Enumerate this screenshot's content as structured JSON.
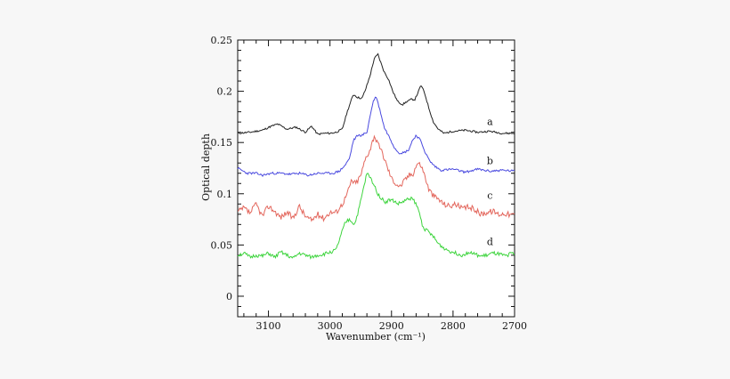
{
  "chart_data": {
    "type": "line",
    "title": "",
    "xlabel": "Wavenumber (cm⁻¹)",
    "ylabel": "Optical depth",
    "xlim": [
      3150,
      2700
    ],
    "ylim": [
      -0.02,
      0.25
    ],
    "x_reversed": true,
    "grid": false,
    "legend": "none",
    "x_ticks": [
      {
        "value": 3100,
        "label": "3100"
      },
      {
        "value": 3000,
        "label": "3000"
      },
      {
        "value": 2900,
        "label": "2900"
      },
      {
        "value": 2800,
        "label": "2800"
      },
      {
        "value": 2700,
        "label": "2700"
      }
    ],
    "y_ticks": [
      {
        "value": 0,
        "label": "0"
      },
      {
        "value": 0.05,
        "label": "0.05"
      },
      {
        "value": 0.1,
        "label": "0.1"
      },
      {
        "value": 0.15,
        "label": "0.15"
      },
      {
        "value": 0.2,
        "label": "0.2"
      },
      {
        "value": 0.25,
        "label": "0.25"
      }
    ],
    "series": [
      {
        "name": "a",
        "color": "#222222",
        "label_at": [
          2740,
          0.167
        ],
        "x": [
          3150,
          3130,
          3110,
          3095,
          3085,
          3070,
          3055,
          3040,
          3030,
          3020,
          3010,
          3000,
          2990,
          2980,
          2972,
          2962,
          2955,
          2948,
          2942,
          2935,
          2928,
          2922,
          2918,
          2912,
          2905,
          2898,
          2890,
          2882,
          2875,
          2868,
          2862,
          2856,
          2852,
          2846,
          2840,
          2832,
          2824,
          2815,
          2800,
          2780,
          2760,
          2740,
          2720,
          2700
        ],
        "y": [
          0.159,
          0.16,
          0.162,
          0.166,
          0.168,
          0.163,
          0.165,
          0.16,
          0.166,
          0.158,
          0.159,
          0.159,
          0.16,
          0.163,
          0.18,
          0.197,
          0.194,
          0.193,
          0.202,
          0.215,
          0.232,
          0.236,
          0.229,
          0.219,
          0.212,
          0.2,
          0.19,
          0.187,
          0.19,
          0.192,
          0.192,
          0.2,
          0.206,
          0.198,
          0.185,
          0.17,
          0.163,
          0.159,
          0.161,
          0.162,
          0.16,
          0.161,
          0.159,
          0.159
        ]
      },
      {
        "name": "b",
        "color": "#4a4adf",
        "label_at": [
          2740,
          0.129
        ],
        "x": [
          3150,
          3135,
          3120,
          3110,
          3095,
          3080,
          3065,
          3050,
          3035,
          3020,
          3005,
          2995,
          2985,
          2975,
          2968,
          2962,
          2955,
          2948,
          2940,
          2935,
          2930,
          2925,
          2918,
          2912,
          2905,
          2895,
          2888,
          2880,
          2872,
          2866,
          2860,
          2855,
          2850,
          2845,
          2838,
          2830,
          2820,
          2800,
          2780,
          2760,
          2740,
          2720,
          2700
        ],
        "y": [
          0.125,
          0.12,
          0.12,
          0.118,
          0.12,
          0.12,
          0.119,
          0.12,
          0.118,
          0.12,
          0.12,
          0.12,
          0.122,
          0.128,
          0.135,
          0.152,
          0.157,
          0.157,
          0.16,
          0.175,
          0.19,
          0.195,
          0.18,
          0.165,
          0.157,
          0.145,
          0.14,
          0.14,
          0.143,
          0.152,
          0.157,
          0.154,
          0.148,
          0.14,
          0.132,
          0.127,
          0.123,
          0.124,
          0.121,
          0.124,
          0.122,
          0.123,
          0.122
        ]
      },
      {
        "name": "c",
        "color": "#e3665c",
        "label_at": [
          2740,
          0.095
        ],
        "x": [
          3150,
          3140,
          3130,
          3120,
          3110,
          3100,
          3090,
          3080,
          3070,
          3060,
          3050,
          3040,
          3030,
          3020,
          3010,
          3000,
          2990,
          2980,
          2972,
          2965,
          2958,
          2950,
          2942,
          2935,
          2928,
          2922,
          2915,
          2908,
          2900,
          2893,
          2886,
          2880,
          2872,
          2865,
          2858,
          2852,
          2846,
          2840,
          2832,
          2824,
          2815,
          2805,
          2795,
          2785,
          2775,
          2765,
          2755,
          2745,
          2735,
          2725,
          2715,
          2705,
          2700
        ],
        "y": [
          0.082,
          0.086,
          0.081,
          0.09,
          0.078,
          0.088,
          0.083,
          0.077,
          0.082,
          0.076,
          0.088,
          0.078,
          0.074,
          0.08,
          0.076,
          0.082,
          0.082,
          0.09,
          0.1,
          0.113,
          0.11,
          0.118,
          0.135,
          0.143,
          0.157,
          0.148,
          0.14,
          0.128,
          0.115,
          0.11,
          0.107,
          0.112,
          0.118,
          0.12,
          0.13,
          0.128,
          0.118,
          0.105,
          0.098,
          0.095,
          0.09,
          0.088,
          0.09,
          0.085,
          0.087,
          0.085,
          0.08,
          0.082,
          0.083,
          0.08,
          0.081,
          0.079,
          0.08
        ]
      },
      {
        "name": "d",
        "color": "#3dd43d",
        "label_at": [
          2740,
          0.05
        ],
        "x": [
          3150,
          3140,
          3130,
          3120,
          3110,
          3100,
          3090,
          3080,
          3070,
          3060,
          3050,
          3040,
          3030,
          3020,
          3010,
          3000,
          2990,
          2982,
          2975,
          2968,
          2960,
          2953,
          2946,
          2940,
          2934,
          2928,
          2922,
          2916,
          2910,
          2903,
          2896,
          2890,
          2882,
          2875,
          2868,
          2862,
          2856,
          2850,
          2845,
          2840,
          2832,
          2825,
          2815,
          2805,
          2795,
          2785,
          2775,
          2765,
          2755,
          2745,
          2735,
          2725,
          2715,
          2705,
          2700
        ],
        "y": [
          0.04,
          0.042,
          0.038,
          0.04,
          0.039,
          0.042,
          0.038,
          0.043,
          0.04,
          0.037,
          0.042,
          0.04,
          0.038,
          0.04,
          0.041,
          0.043,
          0.045,
          0.06,
          0.072,
          0.075,
          0.07,
          0.085,
          0.104,
          0.12,
          0.115,
          0.108,
          0.1,
          0.095,
          0.092,
          0.094,
          0.093,
          0.09,
          0.092,
          0.094,
          0.096,
          0.092,
          0.084,
          0.07,
          0.065,
          0.063,
          0.058,
          0.052,
          0.047,
          0.044,
          0.042,
          0.04,
          0.043,
          0.041,
          0.039,
          0.04,
          0.042,
          0.041,
          0.039,
          0.042,
          0.041
        ]
      }
    ]
  }
}
